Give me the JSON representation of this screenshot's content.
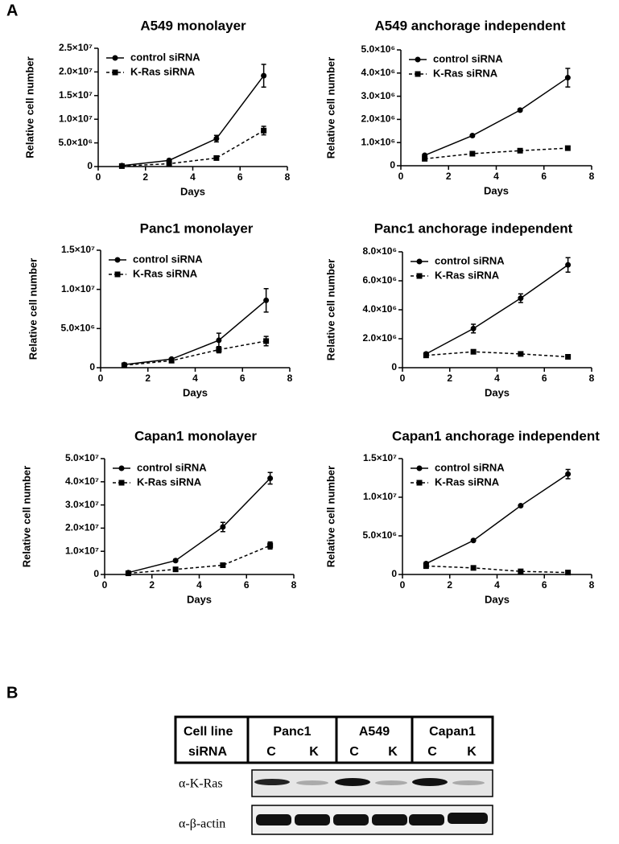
{
  "panel_labels": [
    "A",
    "B"
  ],
  "chart_data": [
    {
      "type": "line",
      "title": "A549 monolayer",
      "xlabel": "Days",
      "ylabel": "Relative cell number",
      "x": [
        1,
        3,
        5,
        7
      ],
      "xlim": [
        0,
        8
      ],
      "xticks": [
        0,
        2,
        4,
        6,
        8
      ],
      "ylim": [
        0,
        25000000
      ],
      "yticks": [
        0,
        {
          "value": 5000000,
          "label": "5.0×10⁶"
        },
        {
          "value": 10000000,
          "label": "1.0×10⁷"
        },
        {
          "value": 15000000,
          "label": "1.5×10⁷"
        },
        {
          "value": 20000000,
          "label": "2.0×10⁷"
        },
        {
          "value": 25000000,
          "label": "2.5×10⁷"
        }
      ],
      "legend": "upper left",
      "series": [
        {
          "name": "control siRNA",
          "color": "#000000",
          "linestyle": "solid",
          "marker": "circle",
          "values": [
            200000,
            1300000,
            5900000,
            19200000
          ],
          "errors": [
            100000,
            200000,
            700000,
            2400000
          ]
        },
        {
          "name": "K-Ras siRNA",
          "color": "#000000",
          "linestyle": "dashed",
          "marker": "square",
          "values": [
            100000,
            600000,
            1800000,
            7600000
          ],
          "errors": [
            50000,
            100000,
            200000,
            900000
          ]
        }
      ]
    },
    {
      "type": "line",
      "title": "A549 anchorage independent",
      "xlabel": "Days",
      "ylabel": "Relative cell number",
      "x": [
        1,
        3,
        5,
        7
      ],
      "xlim": [
        0,
        8
      ],
      "xticks": [
        0,
        2,
        4,
        6,
        8
      ],
      "ylim": [
        0,
        5000000
      ],
      "yticks": [
        0,
        {
          "value": 1000000,
          "label": "1.0×10⁶"
        },
        {
          "value": 2000000,
          "label": "2.0×10⁶"
        },
        {
          "value": 3000000,
          "label": "3.0×10⁶"
        },
        {
          "value": 4000000,
          "label": "4.0×10⁶"
        },
        {
          "value": 5000000,
          "label": "5.0×10⁶"
        }
      ],
      "legend": "upper left",
      "series": [
        {
          "name": "control siRNA",
          "color": "#000000",
          "linestyle": "solid",
          "marker": "circle",
          "values": [
            450000,
            1300000,
            2400000,
            3800000
          ],
          "errors": [
            50000,
            50000,
            50000,
            400000
          ]
        },
        {
          "name": "K-Ras siRNA",
          "color": "#000000",
          "linestyle": "dashed",
          "marker": "square",
          "values": [
            300000,
            520000,
            650000,
            760000
          ],
          "errors": [
            30000,
            50000,
            40000,
            40000
          ]
        }
      ]
    },
    {
      "type": "line",
      "title": "Panc1 monolayer",
      "xlabel": "Days",
      "ylabel": "Relative cell number",
      "x": [
        1,
        3,
        5,
        7
      ],
      "xlim": [
        0,
        8
      ],
      "xticks": [
        0,
        2,
        4,
        6,
        8
      ],
      "ylim": [
        0,
        15000000
      ],
      "yticks": [
        0,
        {
          "value": 5000000,
          "label": "5.0×10⁶"
        },
        {
          "value": 10000000,
          "label": "1.0×10⁷"
        },
        {
          "value": 15000000,
          "label": "1.5×10⁷"
        }
      ],
      "legend": "upper left",
      "series": [
        {
          "name": "control siRNA",
          "color": "#000000",
          "linestyle": "solid",
          "marker": "circle",
          "values": [
            400000,
            1100000,
            3500000,
            8600000
          ],
          "errors": [
            100000,
            100000,
            900000,
            1500000
          ]
        },
        {
          "name": "K-Ras siRNA",
          "color": "#000000",
          "linestyle": "dashed",
          "marker": "square",
          "values": [
            300000,
            900000,
            2300000,
            3400000
          ],
          "errors": [
            50000,
            100000,
            400000,
            600000
          ]
        }
      ]
    },
    {
      "type": "line",
      "title": "Panc1 anchorage independent",
      "xlabel": "Days",
      "ylabel": "Relative cell number",
      "x": [
        1,
        3,
        5,
        7
      ],
      "xlim": [
        0,
        8
      ],
      "xticks": [
        0,
        2,
        4,
        6,
        8
      ],
      "ylim": [
        0,
        8000000
      ],
      "yticks": [
        0,
        {
          "value": 2000000,
          "label": "2.0×10⁶"
        },
        {
          "value": 4000000,
          "label": "4.0×10⁶"
        },
        {
          "value": 6000000,
          "label": "6.0×10⁶"
        },
        {
          "value": 8000000,
          "label": "8.0×10⁶"
        }
      ],
      "legend": "upper left",
      "series": [
        {
          "name": "control siRNA",
          "color": "#000000",
          "linestyle": "solid",
          "marker": "circle",
          "values": [
            950000,
            2700000,
            4800000,
            7100000
          ],
          "errors": [
            100000,
            300000,
            300000,
            500000
          ]
        },
        {
          "name": "K-Ras siRNA",
          "color": "#000000",
          "linestyle": "dashed",
          "marker": "square",
          "values": [
            850000,
            1100000,
            950000,
            750000
          ],
          "errors": [
            50000,
            100000,
            50000,
            50000
          ]
        }
      ]
    },
    {
      "type": "line",
      "title": "Capan1 monolayer",
      "xlabel": "Days",
      "ylabel": "Relative cell number",
      "x": [
        1,
        3,
        5,
        7
      ],
      "xlim": [
        0,
        8
      ],
      "xticks": [
        0,
        2,
        4,
        6,
        8
      ],
      "ylim": [
        0,
        50000000
      ],
      "yticks": [
        0,
        {
          "value": 10000000,
          "label": "1.0×10⁷"
        },
        {
          "value": 20000000,
          "label": "2.0×10⁷"
        },
        {
          "value": 30000000,
          "label": "3.0×10⁷"
        },
        {
          "value": 40000000,
          "label": "4.0×10⁷"
        },
        {
          "value": 50000000,
          "label": "5.0×10⁷"
        }
      ],
      "legend": "upper left",
      "series": [
        {
          "name": "control siRNA",
          "color": "#000000",
          "linestyle": "solid",
          "marker": "circle",
          "values": [
            800000,
            6000000,
            20500000,
            41500000
          ],
          "errors": [
            200000,
            500000,
            2000000,
            2500000
          ]
        },
        {
          "name": "K-Ras siRNA",
          "color": "#000000",
          "linestyle": "dashed",
          "marker": "square",
          "values": [
            500000,
            2200000,
            4000000,
            12500000
          ],
          "errors": [
            100000,
            200000,
            300000,
            1500000
          ]
        }
      ]
    },
    {
      "type": "line",
      "title": "Capan1 anchorage independent",
      "xlabel": "Days",
      "ylabel": "Relative cell number",
      "x": [
        1,
        3,
        5,
        7
      ],
      "xlim": [
        0,
        8
      ],
      "xticks": [
        0,
        2,
        4,
        6,
        8
      ],
      "ylim": [
        0,
        15000000
      ],
      "yticks": [
        0,
        {
          "value": 5000000,
          "label": "5.0×10⁶"
        },
        {
          "value": 10000000,
          "label": "1.0×10⁷"
        },
        {
          "value": 15000000,
          "label": "1.5×10⁷"
        }
      ],
      "legend": "upper left",
      "series": [
        {
          "name": "control siRNA",
          "color": "#000000",
          "linestyle": "solid",
          "marker": "circle",
          "values": [
            1400000,
            4400000,
            8900000,
            13000000
          ],
          "errors": [
            200000,
            100000,
            100000,
            600000
          ]
        },
        {
          "name": "K-Ras siRNA",
          "color": "#000000",
          "linestyle": "dashed",
          "marker": "square",
          "values": [
            1100000,
            850000,
            400000,
            250000
          ],
          "errors": [
            300000,
            100000,
            100000,
            50000
          ]
        }
      ]
    }
  ],
  "blot": {
    "header": [
      "Cell line",
      "siRNA"
    ],
    "groups": [
      {
        "name": "Panc1",
        "lanes": [
          "C",
          "K"
        ]
      },
      {
        "name": "A549",
        "lanes": [
          "C",
          "K"
        ]
      },
      {
        "name": "Capan1",
        "lanes": [
          "C",
          "K"
        ]
      }
    ],
    "rows": [
      "α-K-Ras",
      "α-β-actin"
    ]
  }
}
